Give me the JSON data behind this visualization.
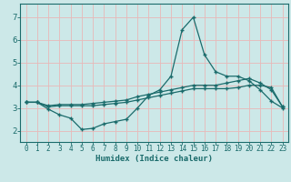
{
  "xlabel": "Humidex (Indice chaleur)",
  "bg_color": "#cce8e8",
  "line_color": "#1a6b6b",
  "grid_color_major": "#f0b8b8",
  "grid_color_minor": "#d4e8e8",
  "xlim": [
    -0.5,
    23.5
  ],
  "ylim": [
    1.5,
    7.6
  ],
  "yticks": [
    2,
    3,
    4,
    5,
    6,
    7
  ],
  "xticks": [
    0,
    1,
    2,
    3,
    4,
    5,
    6,
    7,
    8,
    9,
    10,
    11,
    12,
    13,
    14,
    15,
    16,
    17,
    18,
    19,
    20,
    21,
    22,
    23
  ],
  "line1_x": [
    0,
    1,
    2,
    3,
    4,
    5,
    6,
    7,
    8,
    9,
    10,
    11,
    12,
    13,
    14,
    15,
    16,
    17,
    18,
    19,
    20,
    21,
    22,
    23
  ],
  "line1_y": [
    3.25,
    3.25,
    2.95,
    2.7,
    2.55,
    2.05,
    2.1,
    2.3,
    2.4,
    2.5,
    3.0,
    3.55,
    3.8,
    4.4,
    6.45,
    7.0,
    5.35,
    4.6,
    4.4,
    4.4,
    4.2,
    3.8,
    3.3,
    3.0
  ],
  "line2_x": [
    0,
    1,
    2,
    3,
    4,
    5,
    6,
    7,
    8,
    9,
    10,
    11,
    12,
    13,
    14,
    15,
    16,
    17,
    18,
    19,
    20,
    21,
    22,
    23
  ],
  "line2_y": [
    3.25,
    3.25,
    3.05,
    3.1,
    3.1,
    3.1,
    3.1,
    3.15,
    3.2,
    3.25,
    3.35,
    3.45,
    3.55,
    3.65,
    3.75,
    3.85,
    3.85,
    3.85,
    3.85,
    3.9,
    4.0,
    4.0,
    3.9,
    3.05
  ],
  "line3_x": [
    0,
    1,
    2,
    3,
    4,
    5,
    6,
    7,
    8,
    9,
    10,
    11,
    12,
    13,
    14,
    15,
    16,
    17,
    18,
    19,
    20,
    21,
    22,
    23
  ],
  "line3_y": [
    3.25,
    3.25,
    3.1,
    3.15,
    3.15,
    3.15,
    3.2,
    3.25,
    3.3,
    3.35,
    3.5,
    3.6,
    3.7,
    3.8,
    3.9,
    4.0,
    4.0,
    4.0,
    4.1,
    4.2,
    4.3,
    4.1,
    3.8,
    3.05
  ],
  "marker": "+",
  "markersize": 3,
  "linewidth": 0.9
}
